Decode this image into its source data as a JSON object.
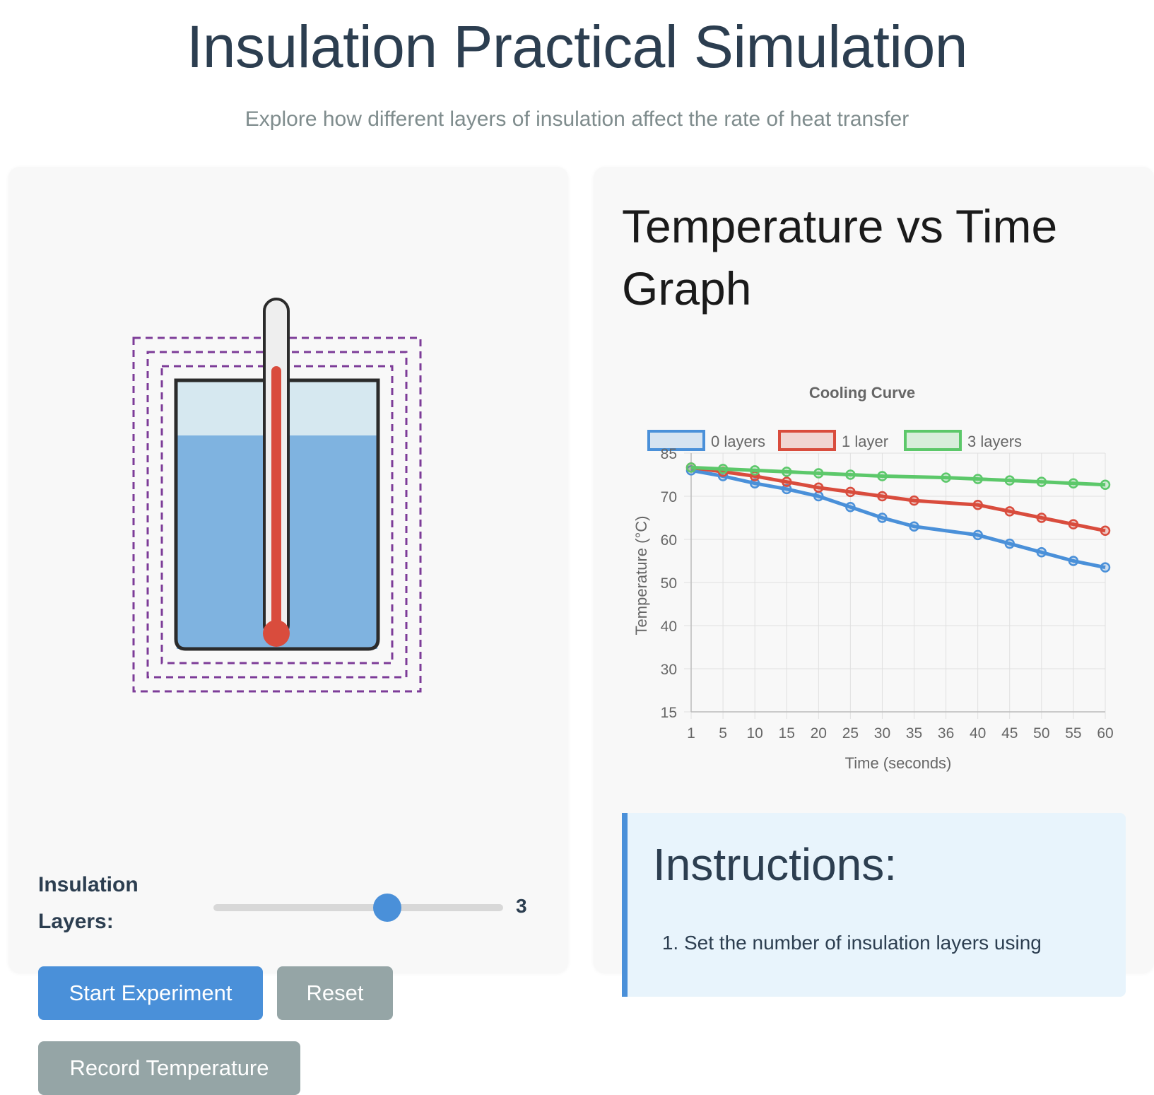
{
  "page": {
    "title": "Insulation Practical Simulation",
    "subtitle": "Explore how different layers of insulation affect the rate of heat transfer"
  },
  "controls": {
    "slider_label": "Insulation Layers:",
    "slider_min": 0,
    "slider_max": 5,
    "slider_value": 3,
    "start_label": "Start Experiment",
    "reset_label": "Reset",
    "record_label": "Record Temperature"
  },
  "colors": {
    "accent": "#4a90d9",
    "water": "#7fb3e0",
    "mercury": "#d94c3d",
    "insulation": "#7d3c98",
    "button_grey": "#95a5a6"
  },
  "graph": {
    "heading": "Temperature vs Time Graph"
  },
  "chart_data": {
    "type": "line",
    "title": "Cooling Curve",
    "xlabel": "Time (seconds)",
    "ylabel": "Temperature (°C)",
    "categories": [
      "1",
      "5",
      "10",
      "15",
      "20",
      "25",
      "30",
      "35",
      "36",
      "40",
      "45",
      "50",
      "55",
      "60"
    ],
    "y_ticks": [
      15,
      30,
      40,
      50,
      60,
      70,
      85
    ],
    "grid": true,
    "legend_position": "top",
    "series": [
      {
        "name": "0 layers",
        "color": "#4a90d9",
        "values": [
          79,
          77,
          74.5,
          72.5,
          70,
          67.5,
          65,
          63,
          null,
          61,
          59,
          57,
          55,
          53.5
        ]
      },
      {
        "name": "1 layer",
        "color": "#d94c3d",
        "values": [
          80,
          78.5,
          77,
          75,
          73,
          71.5,
          70,
          69,
          null,
          68,
          66.5,
          65,
          63.5,
          62
        ]
      },
      {
        "name": "3 layers",
        "color": "#5cc86a",
        "values": [
          80,
          79.5,
          79,
          78.5,
          78,
          77.5,
          77,
          null,
          76.5,
          76,
          75.5,
          75,
          74.5,
          74
        ]
      }
    ]
  },
  "instructions": {
    "heading": "Instructions:",
    "items": [
      "Set the number of insulation layers using"
    ]
  }
}
